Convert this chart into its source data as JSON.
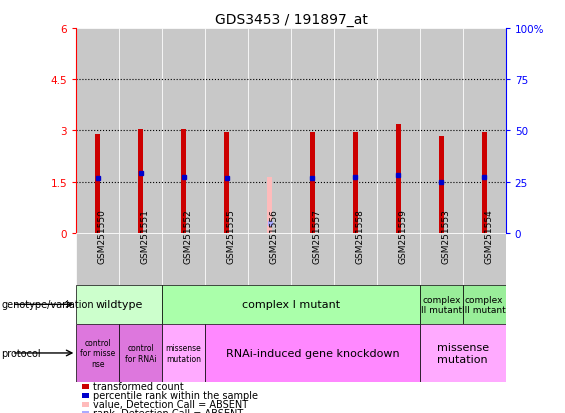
{
  "title": "GDS3453 / 191897_at",
  "samples": [
    "GSM251550",
    "GSM251551",
    "GSM251552",
    "GSM251555",
    "GSM251556",
    "GSM251557",
    "GSM251558",
    "GSM251559",
    "GSM251553",
    "GSM251554"
  ],
  "bar_values": [
    2.9,
    3.05,
    3.05,
    2.95,
    0.0,
    2.95,
    2.95,
    3.2,
    2.85,
    2.95
  ],
  "bar_absent": [
    0.0,
    0.0,
    0.0,
    0.0,
    1.65,
    0.0,
    0.0,
    0.0,
    0.0,
    0.0
  ],
  "percentile_values": [
    1.6,
    1.75,
    1.65,
    1.6,
    0.3,
    1.6,
    1.65,
    1.7,
    1.5,
    1.65
  ],
  "percentile_absent": [
    false,
    false,
    false,
    false,
    true,
    false,
    false,
    false,
    false,
    false
  ],
  "ylim_left": [
    0,
    6
  ],
  "ylim_right": [
    0,
    100
  ],
  "yticks_left": [
    0,
    1.5,
    3.0,
    4.5,
    6.0
  ],
  "ytick_labels_left": [
    "0",
    "1.5",
    "3",
    "4.5",
    "6"
  ],
  "yticks_right": [
    0,
    25,
    50,
    75,
    100
  ],
  "ytick_labels_right": [
    "0",
    "25",
    "50",
    "75",
    "100%"
  ],
  "bar_color": "#cc0000",
  "bar_absent_color": "#ffbbbb",
  "percentile_color": "#0000cc",
  "percentile_absent_color": "#aaaaff",
  "col_bg_color": "#c8c8c8",
  "genotype_row": {
    "label": "genotype/variation",
    "groups": [
      {
        "text": "wildtype",
        "span": [
          0,
          2
        ],
        "color": "#ccffcc"
      },
      {
        "text": "complex I mutant",
        "span": [
          2,
          8
        ],
        "color": "#aaffaa"
      },
      {
        "text": "complex\nII mutant",
        "span": [
          8,
          9
        ],
        "color": "#99ee99"
      },
      {
        "text": "complex\nIII mutant",
        "span": [
          9,
          10
        ],
        "color": "#99ee99"
      }
    ]
  },
  "protocol_row": {
    "label": "protocol",
    "groups": [
      {
        "text": "control\nfor misse\nnse",
        "span": [
          0,
          1
        ],
        "color": "#dd77dd"
      },
      {
        "text": "control\nfor RNAi",
        "span": [
          1,
          2
        ],
        "color": "#dd77dd"
      },
      {
        "text": "missense\nmutation",
        "span": [
          2,
          3
        ],
        "color": "#ffaaff"
      },
      {
        "text": "RNAi-induced gene knockdown",
        "span": [
          3,
          8
        ],
        "color": "#ff88ff"
      },
      {
        "text": "missense\nmutation",
        "span": [
          8,
          10
        ],
        "color": "#ffaaff"
      }
    ]
  },
  "legend_items": [
    {
      "label": "transformed count",
      "color": "#cc0000"
    },
    {
      "label": "percentile rank within the sample",
      "color": "#0000cc"
    },
    {
      "label": "value, Detection Call = ABSENT",
      "color": "#ffbbbb"
    },
    {
      "label": "rank, Detection Call = ABSENT",
      "color": "#aaaaff"
    }
  ]
}
